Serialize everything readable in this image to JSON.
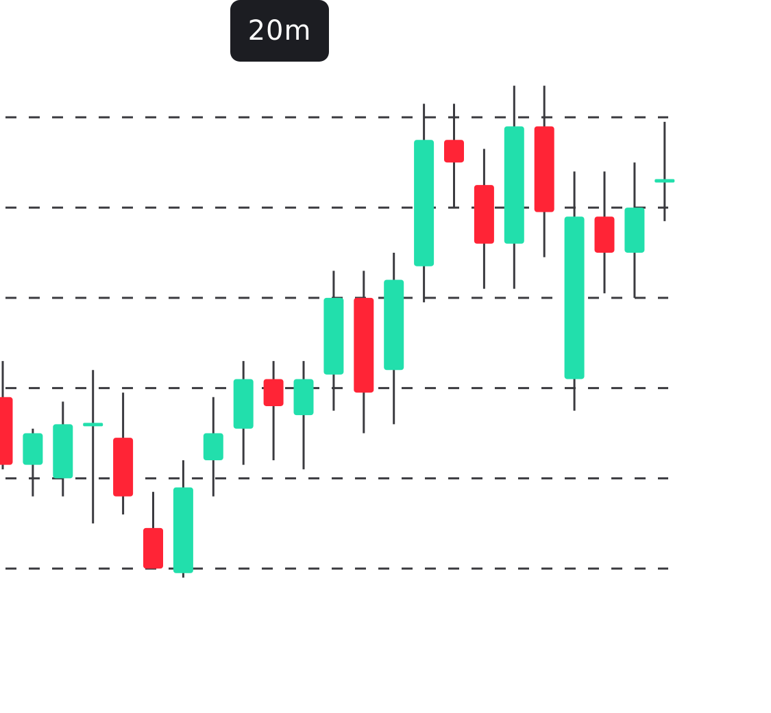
{
  "timeframe": {
    "label": "20m"
  },
  "colors": {
    "up": "#22dfac",
    "down": "#ff2436",
    "wick": "#3a3a3f",
    "grid": "#3a3a3f",
    "badge_bg": "#1c1d22",
    "badge_text": "#ffffff"
  },
  "chart_data": {
    "type": "candlestick",
    "grid": "dashed-horizontal",
    "gridlines": [
      1,
      2,
      3,
      4,
      5,
      6
    ],
    "ylim": [
      -0.6,
      7.3
    ],
    "candles": [
      {
        "open": 2.9,
        "high": 3.3,
        "low": 2.1,
        "close": 2.15
      },
      {
        "open": 2.15,
        "high": 2.55,
        "low": 1.8,
        "close": 2.5
      },
      {
        "open": 2.0,
        "high": 2.85,
        "low": 1.8,
        "close": 2.6
      },
      {
        "open": 2.6,
        "high": 3.2,
        "low": 1.5,
        "close": 2.6
      },
      {
        "open": 2.45,
        "high": 2.95,
        "low": 1.6,
        "close": 1.8
      },
      {
        "open": 1.45,
        "high": 1.85,
        "low": 1.0,
        "close": 1.0
      },
      {
        "open": 0.95,
        "high": 2.2,
        "low": 0.9,
        "close": 1.9
      },
      {
        "open": 2.2,
        "high": 2.9,
        "low": 1.8,
        "close": 2.5
      },
      {
        "open": 2.55,
        "high": 3.3,
        "low": 2.15,
        "close": 3.1
      },
      {
        "open": 3.1,
        "high": 3.3,
        "low": 2.2,
        "close": 2.8
      },
      {
        "open": 2.7,
        "high": 3.3,
        "low": 2.1,
        "close": 3.1
      },
      {
        "open": 3.15,
        "high": 4.3,
        "low": 2.75,
        "close": 4.0
      },
      {
        "open": 4.0,
        "high": 4.3,
        "low": 2.5,
        "close": 2.95
      },
      {
        "open": 3.2,
        "high": 4.5,
        "low": 2.6,
        "close": 4.2
      },
      {
        "open": 4.35,
        "high": 6.15,
        "low": 3.95,
        "close": 5.75
      },
      {
        "open": 5.75,
        "high": 6.15,
        "low": 5.0,
        "close": 5.5
      },
      {
        "open": 5.25,
        "high": 5.65,
        "low": 4.1,
        "close": 4.6
      },
      {
        "open": 4.6,
        "high": 6.35,
        "low": 4.1,
        "close": 5.9
      },
      {
        "open": 5.9,
        "high": 6.35,
        "low": 4.45,
        "close": 4.95
      },
      {
        "open": 3.1,
        "high": 5.4,
        "low": 2.75,
        "close": 4.9
      },
      {
        "open": 4.9,
        "high": 5.4,
        "low": 4.05,
        "close": 4.5
      },
      {
        "open": 4.5,
        "high": 5.5,
        "low": 4.0,
        "close": 5.0
      },
      {
        "open": 5.3,
        "high": 5.95,
        "low": 4.85,
        "close": 5.3
      }
    ]
  }
}
